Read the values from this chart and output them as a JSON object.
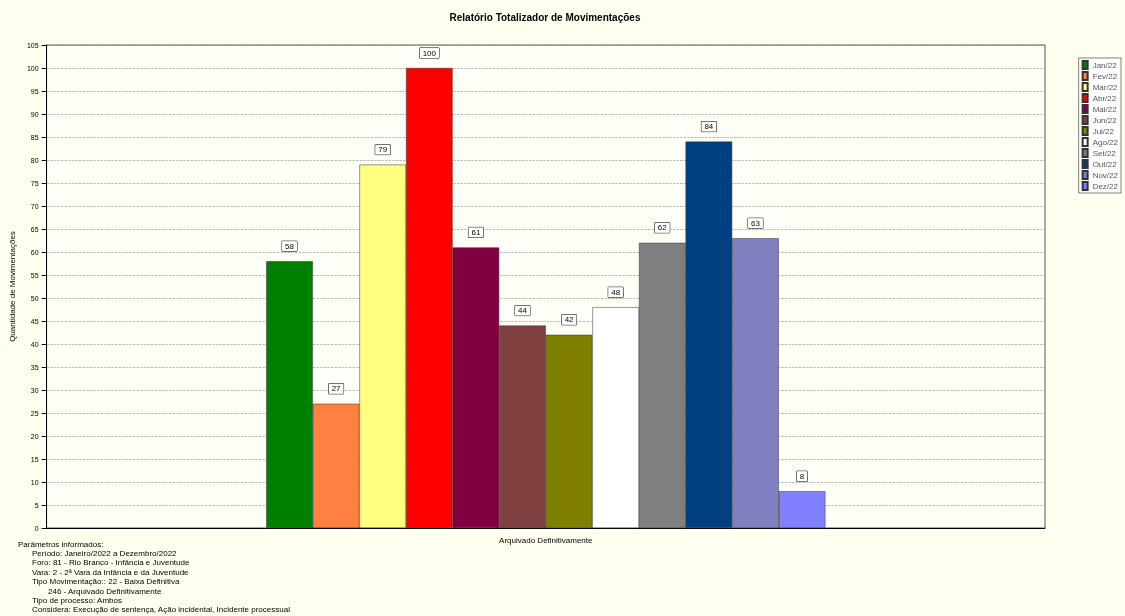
{
  "chart_data": {
    "type": "bar",
    "title": "Relatório Totalizador de Movimentações",
    "ylabel": "Quantidade de Movimentações",
    "categories": [
      "Arquivado Definitivamente"
    ],
    "series": [
      {
        "name": "Jan/22",
        "color": "#008000",
        "values": [
          58
        ]
      },
      {
        "name": "Fev/22",
        "color": "#ff8040",
        "values": [
          27
        ]
      },
      {
        "name": "Mar/22",
        "color": "#ffff80",
        "values": [
          79
        ]
      },
      {
        "name": "Abr/22",
        "color": "#ff0000",
        "values": [
          100
        ]
      },
      {
        "name": "Mai/22",
        "color": "#800040",
        "values": [
          61
        ]
      },
      {
        "name": "Jun/22",
        "color": "#804040",
        "values": [
          44
        ]
      },
      {
        "name": "Jul/22",
        "color": "#808000",
        "values": [
          42
        ]
      },
      {
        "name": "Ago/22",
        "color": "#ffffff",
        "values": [
          48
        ]
      },
      {
        "name": "Set/22",
        "color": "#808080",
        "values": [
          62
        ]
      },
      {
        "name": "Out/22",
        "color": "#004080",
        "values": [
          84
        ]
      },
      {
        "name": "Nov/22",
        "color": "#8080c0",
        "values": [
          63
        ]
      },
      {
        "name": "Dez/22",
        "color": "#8080ff",
        "values": [
          8
        ]
      }
    ],
    "ylim": [
      0,
      105
    ],
    "yticks": [
      0,
      5,
      10,
      15,
      20,
      25,
      30,
      35,
      40,
      45,
      50,
      55,
      60,
      65,
      70,
      75,
      80,
      85,
      90,
      95,
      100,
      105
    ],
    "grid": "y",
    "legend": "right",
    "data_labels": true,
    "annotations": [
      "Parâmetros informados:",
      "Período: Janeiro/2022 a Dezembro/2022",
      "Foro: 81 - Rio Branco - Infância e Juventude",
      "Vara: 2 - 2ª Vara da Infância e da Juventude",
      "Tipo Movimentação:: 22 - Baixa Definitiva",
      "246 - Arquivado Definitivamente",
      "Tipo de processo: Ambos",
      "Considera: Execução de sentença, Ação incidental, Incidente processual"
    ]
  }
}
